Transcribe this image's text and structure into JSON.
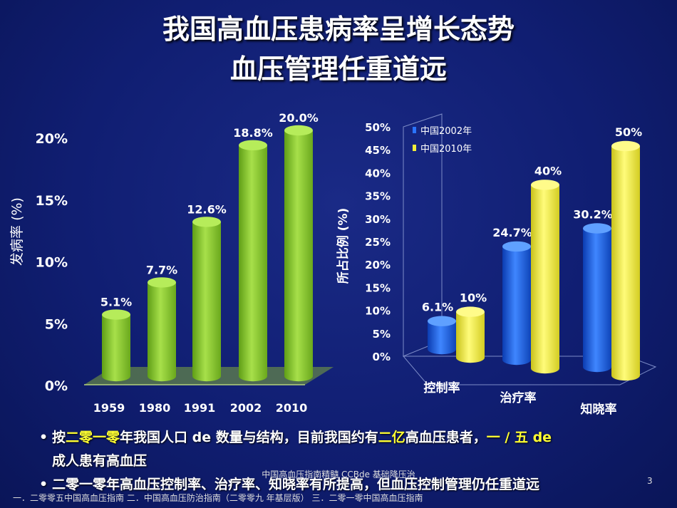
{
  "title_line1": "我国高血压患病率呈增长态势",
  "title_line2": "血压管理任重道远",
  "chart_data": [
    {
      "type": "bar",
      "categories": [
        "1959",
        "1980",
        "1991",
        "2002",
        "2010"
      ],
      "values": [
        5.1,
        7.7,
        12.6,
        18.8,
        20.0
      ],
      "labels": [
        "5.1%",
        "7.7%",
        "12.6%",
        "18.8%",
        "20.0%"
      ],
      "ylabel": "发病率 (%)",
      "ylim": [
        0,
        20
      ],
      "yticks": [
        "0%",
        "5%",
        "10%",
        "15%",
        "20%"
      ],
      "color": "#8ccc2e"
    },
    {
      "type": "bar",
      "categories": [
        "控制率",
        "治疗率",
        "知晓率"
      ],
      "series": [
        {
          "name": "中国2002年",
          "values": [
            6.1,
            24.7,
            30.2
          ],
          "labels": [
            "6.1%",
            "24.7%",
            "30.2%"
          ],
          "color": "#1f5fe0"
        },
        {
          "name": "中国2010年",
          "values": [
            10,
            40,
            50
          ],
          "labels": [
            "10%",
            "40%",
            "50%"
          ],
          "color": "#f2ee3a"
        }
      ],
      "ylabel": "所占比例 (%)",
      "ylim": [
        0,
        50
      ],
      "yticks": [
        "0%",
        "5%",
        "10%",
        "15%",
        "20%",
        "25%",
        "30%",
        "35%",
        "40%",
        "45%",
        "50%"
      ]
    }
  ],
  "bullets": [
    {
      "parts": [
        "按",
        "二零一零",
        "年我国人口 de 数量与结构，目前我国约有",
        "二亿",
        "高血压患者，",
        "一 / 五 de",
        ""
      ]
    },
    {
      "line2": "成人患有高血压"
    },
    {
      "text": "二零一零年高血压控制率、治疗率、知晓率有所提高，但血压控制管理仍任重道远"
    }
  ],
  "footer_center": "中国高血压指南精髓 CCBde 基础降压治",
  "footer_refs": "一．二零零五中国高血压指南    二．中国高血压防治指南（二零零九  年基层版）  三．二零一零中国高血压指南",
  "page_number": "3"
}
